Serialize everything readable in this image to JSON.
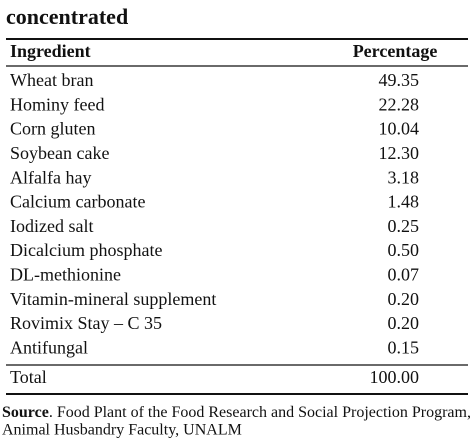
{
  "title": "concentrated",
  "table": {
    "header": [
      "Ingredient",
      "Percentage"
    ],
    "rows": [
      [
        "Wheat bran",
        "49.35"
      ],
      [
        "Hominy feed",
        "22.28"
      ],
      [
        "Corn gluten",
        "10.04"
      ],
      [
        "Soybean cake",
        "12.30"
      ],
      [
        "Alfalfa hay",
        "3.18"
      ],
      [
        "Calcium carbonate",
        "1.48"
      ],
      [
        "Iodized salt",
        "0.25"
      ],
      [
        "Dicalcium phosphate",
        "0.50"
      ],
      [
        "DL-methionine",
        "0.07"
      ],
      [
        "Vitamin-mineral supplement",
        "0.20"
      ],
      [
        "Rovimix Stay – C 35",
        "0.20"
      ],
      [
        "Antifungal",
        "0.15"
      ]
    ],
    "total": [
      "Total",
      "100.00"
    ]
  },
  "source": {
    "label": "Source",
    "lines": [
      ". Food Plant of the Food Research and Social Projection Program,",
      "Animal Husbandry Faculty, UNALM"
    ]
  }
}
